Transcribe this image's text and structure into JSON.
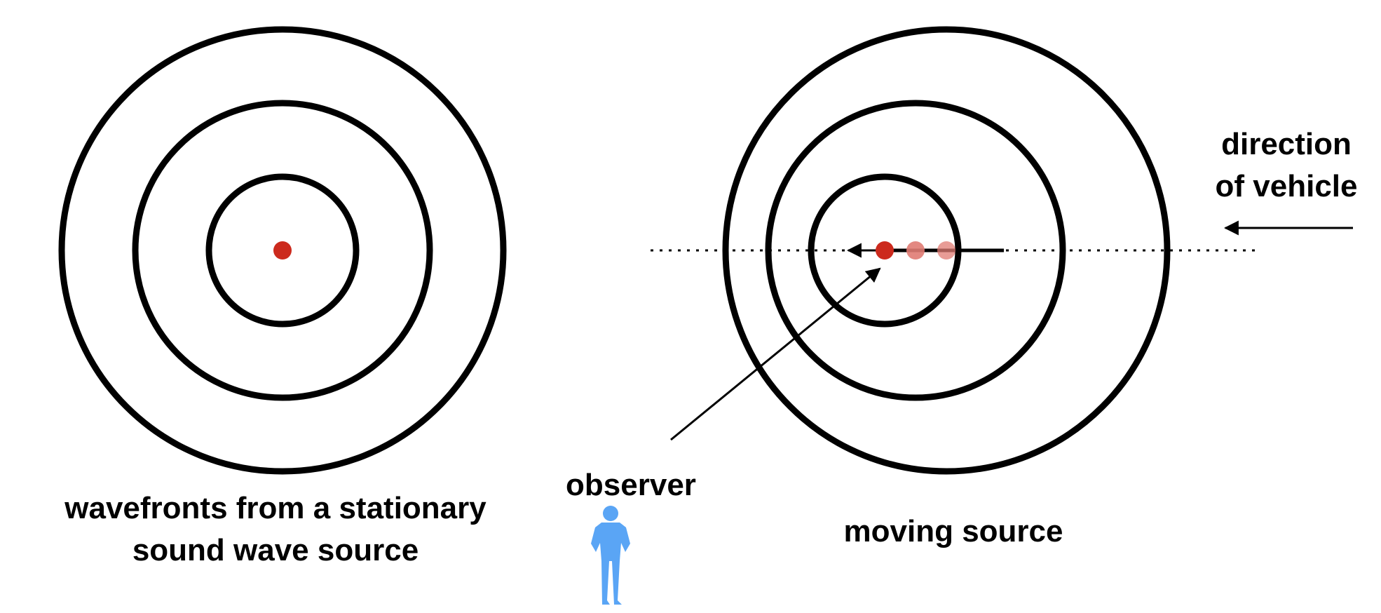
{
  "labels": {
    "stationary_line1": "wavefronts from a stationary",
    "stationary_line2": "sound wave source",
    "observer": "observer",
    "moving_source": "moving source",
    "direction_line1": "direction",
    "direction_line2": "of vehicle"
  },
  "colors": {
    "ring": "#000000",
    "source": "#cc2a1d",
    "source_faded": "#e07b73",
    "observer": "#5aa5f5"
  },
  "icons": {
    "observer": "person-standing-icon",
    "direction": "arrow-left-icon"
  }
}
